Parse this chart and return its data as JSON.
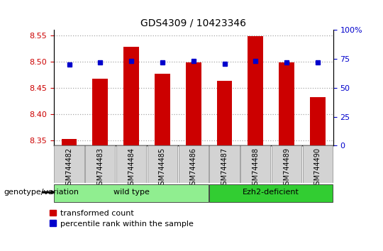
{
  "title": "GDS4309 / 10423346",
  "samples": [
    "GSM744482",
    "GSM744483",
    "GSM744484",
    "GSM744485",
    "GSM744486",
    "GSM744487",
    "GSM744488",
    "GSM744489",
    "GSM744490"
  ],
  "transformed_counts": [
    8.352,
    8.468,
    8.528,
    8.477,
    8.499,
    8.464,
    8.549,
    8.499,
    8.432
  ],
  "percentile_ranks": [
    70,
    72,
    73,
    72,
    73,
    71,
    73,
    72,
    72
  ],
  "ylim_left": [
    8.34,
    8.56
  ],
  "ylim_right": [
    0,
    100
  ],
  "yticks_left": [
    8.35,
    8.4,
    8.45,
    8.5,
    8.55
  ],
  "yticks_right": [
    0,
    25,
    50,
    75,
    100
  ],
  "bar_color": "#cc0000",
  "dot_color": "#0000cc",
  "bar_width": 0.5,
  "groups": [
    {
      "label": "wild type",
      "start": 0,
      "end": 4,
      "n": 5,
      "color": "#90ee90"
    },
    {
      "label": "Ezh2-deficient",
      "start": 5,
      "end": 8,
      "n": 4,
      "color": "#32cd32"
    }
  ],
  "group_label": "genotype/variation",
  "legend_items": [
    {
      "label": "transformed count",
      "color": "#cc0000"
    },
    {
      "label": "percentile rank within the sample",
      "color": "#0000cc"
    }
  ],
  "background_color": "#ffffff",
  "plot_bg_color": "#ffffff",
  "xtick_bg_color": "#d3d3d3",
  "tick_label_color_left": "#cc0000",
  "tick_label_color_right": "#0000cc",
  "grid_color": "#000000",
  "grid_alpha": 0.35,
  "title_fontsize": 10,
  "axis_fontsize": 8,
  "legend_fontsize": 8,
  "group_fontsize": 8
}
